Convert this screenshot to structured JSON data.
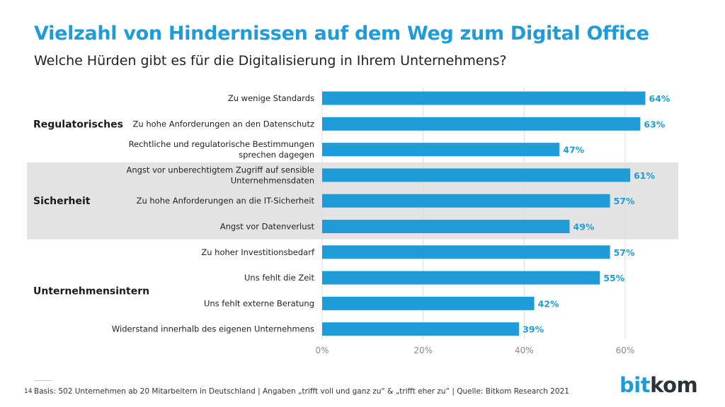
{
  "title": "Vielzahl von Hindernissen auf dem Weg zum Digital Office",
  "subtitle": "Welche Hürden gibt es für die Digitalisierung in Ihrem Unternehmens?",
  "footer": {
    "page_number": "14",
    "note": "Basis: 502 Unternehmen ab 20 Mitarbeitern in Deutschland | Angaben „trifft voll und ganz zu“ & „trifft eher zu“ | Quelle: Bitkom Research 2021"
  },
  "logo": {
    "part1": "bit",
    "part2": "kom"
  },
  "colors": {
    "accent": "#1f9bd7",
    "bar": "#1f9bd7",
    "band": "#e3e3e3",
    "grid": "#dcdcdc",
    "text": "#222222"
  },
  "chart_data": {
    "type": "bar",
    "orientation": "horizontal",
    "title": "Vielzahl von Hindernissen auf dem Weg zum Digital Office",
    "subtitle": "Welche Hürden gibt es für die Digitalisierung in Ihrem Unternehmens?",
    "xlabel": "",
    "ylabel": "",
    "xlim": [
      0,
      70
    ],
    "xticks": [
      0,
      20,
      40,
      60
    ],
    "xtick_labels": [
      "0%",
      "20%",
      "40%",
      "60%"
    ],
    "grid": "vertical",
    "categories": [
      "Zu wenige Standards",
      "Zu hohe Anforderungen an den Datenschutz",
      "Rechtliche und regulatorische Bestimmungen|sprechen dagegen",
      "Angst vor unberechtigtem Zugriff auf sensible|Unternehmensdaten",
      "Zu hohe Anforderungen an die IT-Sicherheit",
      "Angst vor Datenverlust",
      "Zu hoher Investitionsbedarf",
      "Uns fehlt die Zeit",
      "Uns fehlt externe Beratung",
      "Widerstand innerhalb des eigenen Unternehmens"
    ],
    "values": [
      64,
      63,
      47,
      61,
      57,
      49,
      57,
      55,
      42,
      39
    ],
    "value_labels": [
      "64%",
      "63%",
      "47%",
      "61%",
      "57%",
      "49%",
      "57%",
      "55%",
      "42%",
      "39%"
    ],
    "groups": [
      {
        "name": "Regulatorisches",
        "start": 0,
        "end": 2,
        "shaded": false
      },
      {
        "name": "Sicherheit",
        "start": 3,
        "end": 5,
        "shaded": true
      },
      {
        "name": "Unternehmensintern",
        "start": 6,
        "end": 9,
        "shaded": false
      }
    ]
  }
}
